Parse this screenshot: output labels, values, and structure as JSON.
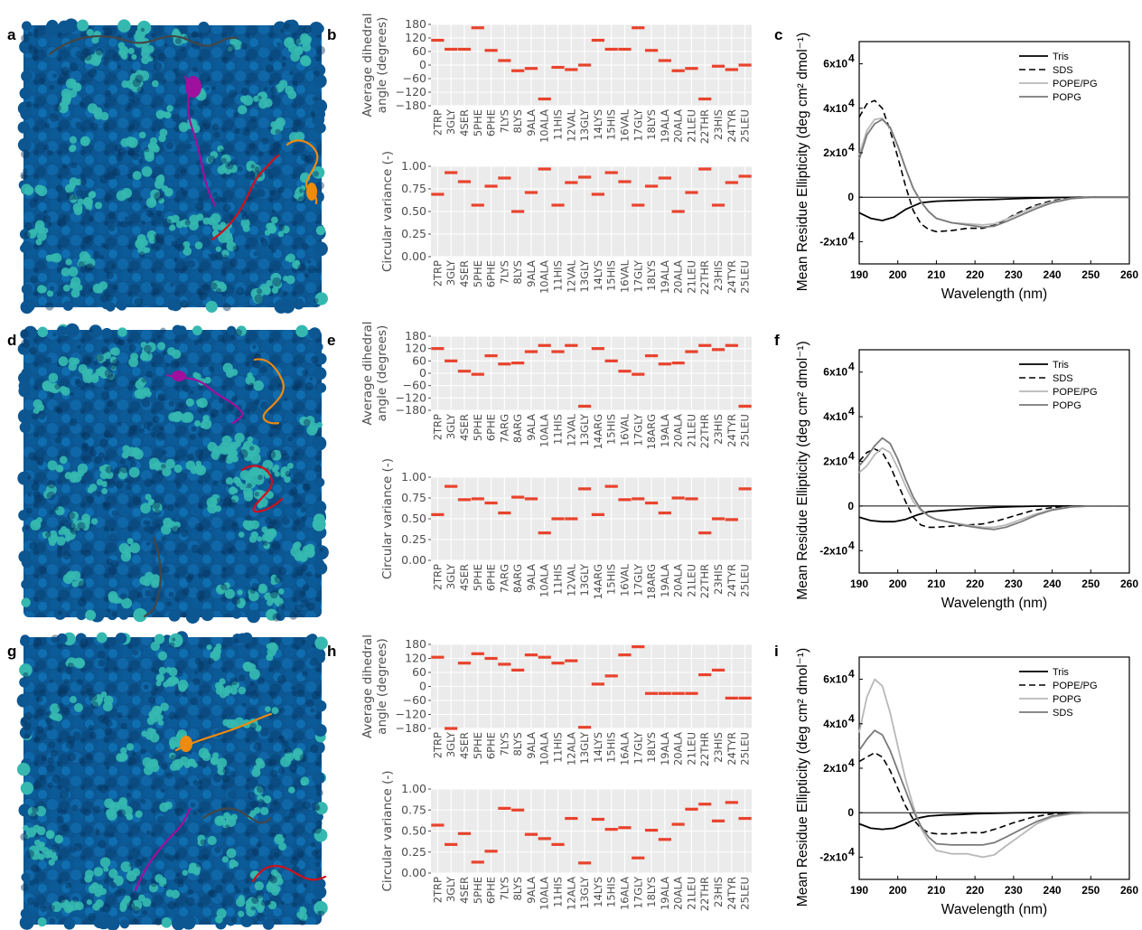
{
  "panel_letters": [
    "a",
    "b",
    "c",
    "d",
    "e",
    "f",
    "g",
    "h",
    "i"
  ],
  "colors": {
    "grid_bg": "#ebebeb",
    "bar": "#e8432d",
    "lipid_dark": "#0c5691",
    "lipid_light": "#35b8b0",
    "peptide_purple": "#a0109e",
    "peptide_orange": "#f08a0c",
    "peptide_red": "#d0101a",
    "peptide_grey": "#454545"
  },
  "chart_data": [
    {
      "panel": "b",
      "type": "errorbar-horizontal",
      "ylabel": [
        "Average dihedral",
        "angle (degrees)"
      ],
      "yticks": [
        "180",
        "120",
        "60",
        "0",
        "−60",
        "−120",
        "−180"
      ],
      "ylim": [
        -180,
        180
      ],
      "categories": [
        "2TRP",
        "3GLY",
        "4SER",
        "5PHE",
        "6PHE",
        "7LYS",
        "8LYS",
        "9ALA",
        "10ALA",
        "11HIS",
        "12VAL",
        "13GLY",
        "14LYS",
        "15HIS",
        "16VAL",
        "17GLY",
        "18LYS",
        "19ALA",
        "20ALA",
        "21LEU",
        "22THR",
        "23HIS",
        "24TYR",
        "25LEU"
      ],
      "values": [
        110,
        70,
        70,
        165,
        65,
        20,
        -25,
        -15,
        -150,
        -10,
        -20,
        0,
        110,
        70,
        70,
        165,
        65,
        20,
        -25,
        -15,
        -150,
        -5,
        -20,
        0
      ]
    },
    {
      "panel": "b",
      "type": "errorbar-horizontal",
      "ylabel": [
        "Circular variance (-)"
      ],
      "yticks": [
        "1.00",
        "0.75",
        "0.50",
        "0.25",
        "0.00"
      ],
      "ylim": [
        0,
        1
      ],
      "categories": [
        "2TRP",
        "3GLY",
        "4SER",
        "5PHE",
        "6PHE",
        "7LYS",
        "8LYS",
        "9ALA",
        "10ALA",
        "11HIS",
        "12VAL",
        "13GLY",
        "14LYS",
        "15HIS",
        "16VAL",
        "17GLY",
        "18LYS",
        "19ALA",
        "20ALA",
        "21LEU",
        "22THR",
        "23HIS",
        "24TYR",
        "25LEU"
      ],
      "values": [
        0.69,
        0.93,
        0.83,
        0.57,
        0.78,
        0.87,
        0.5,
        0.71,
        0.97,
        0.57,
        0.82,
        0.88,
        0.69,
        0.93,
        0.83,
        0.57,
        0.78,
        0.87,
        0.5,
        0.71,
        0.97,
        0.57,
        0.82,
        0.89
      ]
    },
    {
      "panel": "e",
      "type": "errorbar-horizontal",
      "ylabel": [
        "Average dihedral",
        "angle (degrees)"
      ],
      "yticks": [
        "180",
        "120",
        "60",
        "0",
        "−60",
        "−120",
        "−180"
      ],
      "ylim": [
        -180,
        180
      ],
      "categories": [
        "2TRP",
        "3GLY",
        "4SER",
        "5PHE",
        "6PHE",
        "7ARG",
        "8ARG",
        "9ALA",
        "10ALA",
        "11HIS",
        "12VAL",
        "13GLY",
        "14ARG",
        "15HIS",
        "16VAL",
        "17GLY",
        "18ARG",
        "19ALA",
        "20ALA",
        "21LEU",
        "22THR",
        "23HIS",
        "24TYR",
        "25LEU"
      ],
      "values": [
        120,
        60,
        10,
        -5,
        85,
        45,
        50,
        105,
        135,
        105,
        135,
        -160,
        120,
        60,
        10,
        -5,
        85,
        45,
        50,
        105,
        135,
        115,
        135,
        -160
      ]
    },
    {
      "panel": "e",
      "type": "errorbar-horizontal",
      "ylabel": [
        "Circular variance (-)"
      ],
      "yticks": [
        "1.00",
        "0.75",
        "0.50",
        "0.25",
        "0.00"
      ],
      "ylim": [
        0,
        1
      ],
      "categories": [
        "2TRP",
        "3GLY",
        "4SER",
        "5PHE",
        "6PHE",
        "7ARG",
        "8ARG",
        "9ALA",
        "10ALA",
        "11HIS",
        "12VAL",
        "13GLY",
        "14ARG",
        "15HIS",
        "16VAL",
        "17GLY",
        "18ARG",
        "19ALA",
        "20ALA",
        "21LEU",
        "22THR",
        "23HIS",
        "24TYR",
        "25LEU"
      ],
      "values": [
        0.55,
        0.89,
        0.73,
        0.74,
        0.69,
        0.57,
        0.76,
        0.74,
        0.33,
        0.5,
        0.5,
        0.86,
        0.55,
        0.89,
        0.73,
        0.74,
        0.69,
        0.57,
        0.75,
        0.74,
        0.33,
        0.5,
        0.49,
        0.86
      ]
    },
    {
      "panel": "h",
      "type": "errorbar-horizontal",
      "ylabel": [
        "Average dihedral",
        "angle (degrees)"
      ],
      "yticks": [
        "180",
        "120",
        "60",
        "0",
        "−60",
        "−120",
        "−180"
      ],
      "ylim": [
        -180,
        180
      ],
      "categories": [
        "2TRP",
        "3GLY",
        "4SER",
        "5PHE",
        "6PHE",
        "7LYS",
        "8LYS",
        "9ALA",
        "10ALA",
        "11HIS",
        "12ALA",
        "13GLY",
        "14LYS",
        "15HIS",
        "16ALA",
        "17GLY",
        "18LYS",
        "19ALA",
        "20ALA",
        "21LEU",
        "22THR",
        "23HIS",
        "24TYR",
        "25LEU"
      ],
      "values": [
        125,
        -180,
        100,
        140,
        120,
        95,
        70,
        135,
        125,
        100,
        110,
        -175,
        10,
        45,
        135,
        170,
        -30,
        -30,
        -30,
        -30,
        50,
        70,
        -50,
        -50
      ]
    },
    {
      "panel": "h",
      "type": "errorbar-horizontal",
      "ylabel": [
        "Circular variance (-)"
      ],
      "yticks": [
        "1.00",
        "0.75",
        "0.50",
        "0.25",
        "0.00"
      ],
      "ylim": [
        0,
        1
      ],
      "categories": [
        "2TRP",
        "3GLY",
        "4SER",
        "5PHE",
        "6PHE",
        "7LYS",
        "8LYS",
        "9ALA",
        "10ALA",
        "11HIS",
        "12ALA",
        "13GLY",
        "14LYS",
        "15HIS",
        "16ALA",
        "17GLY",
        "18LYS",
        "19ALA",
        "20ALA",
        "21LEU",
        "22THR",
        "23HIS",
        "24TYR",
        "25LEU"
      ],
      "values": [
        0.57,
        0.34,
        0.47,
        0.13,
        0.26,
        0.77,
        0.75,
        0.46,
        0.41,
        0.34,
        0.65,
        0.12,
        0.64,
        0.52,
        0.54,
        0.18,
        0.51,
        0.4,
        0.58,
        0.76,
        0.82,
        0.62,
        0.84,
        0.65
      ]
    },
    {
      "panel": "c",
      "type": "line",
      "xlabel": "Wavelength (nm)",
      "ylabel": "Mean Residue Ellipticity (deg cm² dmol⁻¹)",
      "xlim": [
        190,
        260
      ],
      "ylim": [
        -30000,
        70000
      ],
      "xticks": [
        "190",
        "200",
        "210",
        "220",
        "230",
        "240",
        "250",
        "260"
      ],
      "ytick_values": [
        -20000,
        0,
        20000,
        40000,
        60000
      ],
      "ytick_labels": [
        "-2x10",
        "0",
        "2x10",
        "4x10",
        "6x10"
      ],
      "ytick_exp": "4",
      "series": [
        {
          "name": "Tris",
          "style": "black-solid",
          "x": [
            190,
            193,
            196,
            199,
            202,
            206,
            210,
            215,
            220,
            225,
            230,
            235,
            240,
            245,
            250,
            260
          ],
          "y": [
            -7000,
            -9500,
            -10500,
            -9000,
            -5500,
            -2500,
            -1800,
            -1500,
            -1200,
            -1000,
            -700,
            -400,
            -200,
            -100,
            0,
            0
          ]
        },
        {
          "name": "SDS",
          "style": "black-dashed",
          "x": [
            190,
            192,
            194,
            196,
            198,
            200,
            202,
            204,
            206,
            208,
            210,
            214,
            218,
            222,
            226,
            230,
            235,
            240,
            245,
            250,
            260
          ],
          "y": [
            36000,
            42000,
            43500,
            40000,
            30000,
            18000,
            5000,
            -6000,
            -12000,
            -14500,
            -15500,
            -15000,
            -14000,
            -14000,
            -12000,
            -8000,
            -4000,
            -1500,
            -400,
            0,
            0
          ]
        },
        {
          "name": "POPE/PG",
          "style": "lightgrey-solid",
          "x": [
            190,
            192,
            194,
            196,
            198,
            200,
            202,
            204,
            206,
            208,
            210,
            214,
            218,
            222,
            225,
            228,
            232,
            236,
            240,
            245,
            250,
            260
          ],
          "y": [
            19000,
            30000,
            35000,
            35500,
            31000,
            23000,
            13000,
            4000,
            -2000,
            -6500,
            -9500,
            -11500,
            -12000,
            -12500,
            -12000,
            -10000,
            -7000,
            -4000,
            -2000,
            -500,
            0,
            0
          ]
        },
        {
          "name": "POPG",
          "style": "grey-solid",
          "x": [
            190,
            192,
            194,
            196,
            198,
            200,
            202,
            204,
            206,
            208,
            210,
            214,
            218,
            222,
            225,
            228,
            232,
            236,
            240,
            245,
            250,
            260
          ],
          "y": [
            17000,
            28000,
            33000,
            35000,
            31500,
            23000,
            13000,
            4000,
            -2000,
            -6500,
            -9500,
            -11500,
            -12500,
            -13500,
            -13000,
            -11000,
            -8000,
            -5000,
            -2500,
            -600,
            0,
            0
          ]
        }
      ]
    },
    {
      "panel": "f",
      "type": "line",
      "xlabel": "Wavelength (nm)",
      "ylabel": "Mean Residue Ellipticity (deg cm² dmol⁻¹)",
      "xlim": [
        190,
        260
      ],
      "ylim": [
        -30000,
        70000
      ],
      "xticks": [
        "190",
        "200",
        "210",
        "220",
        "230",
        "240",
        "250",
        "260"
      ],
      "ytick_values": [
        -20000,
        0,
        20000,
        40000,
        60000
      ],
      "ytick_labels": [
        "-2x10",
        "0",
        "2x10",
        "4x10",
        "6x10"
      ],
      "ytick_exp": "4",
      "series": [
        {
          "name": "Tris",
          "style": "black-solid",
          "x": [
            190,
            193,
            196,
            199,
            202,
            205,
            208,
            212,
            216,
            220,
            225,
            230,
            235,
            240,
            245,
            250,
            260
          ],
          "y": [
            -5000,
            -6500,
            -7000,
            -7000,
            -6000,
            -4000,
            -2500,
            -2000,
            -1500,
            -1000,
            -600,
            -300,
            -100,
            0,
            0,
            0,
            0
          ]
        },
        {
          "name": "SDS",
          "style": "black-dashed",
          "x": [
            190,
            192,
            194,
            196,
            198,
            200,
            202,
            204,
            206,
            208,
            210,
            214,
            218,
            222,
            226,
            230,
            235,
            240,
            245,
            250,
            260
          ],
          "y": [
            20000,
            24000,
            25500,
            24000,
            18000,
            10000,
            2000,
            -5000,
            -8500,
            -9500,
            -9500,
            -9000,
            -8500,
            -8000,
            -6500,
            -4500,
            -2000,
            -700,
            0,
            0,
            0
          ]
        },
        {
          "name": "POPE/PG",
          "style": "lightgrey-solid",
          "x": [
            190,
            192,
            194,
            196,
            198,
            200,
            202,
            204,
            206,
            208,
            210,
            214,
            218,
            222,
            225,
            228,
            232,
            236,
            240,
            245,
            250,
            260
          ],
          "y": [
            15000,
            18000,
            23000,
            26000,
            24000,
            17000,
            9000,
            2000,
            -2000,
            -4500,
            -6000,
            -7500,
            -8500,
            -9500,
            -9500,
            -8500,
            -6000,
            -3500,
            -1500,
            -300,
            0,
            0
          ]
        },
        {
          "name": "POPG",
          "style": "grey-solid",
          "x": [
            190,
            192,
            194,
            196,
            198,
            200,
            202,
            204,
            206,
            208,
            210,
            214,
            218,
            222,
            225,
            228,
            232,
            236,
            240,
            245,
            250,
            260
          ],
          "y": [
            18000,
            22000,
            27000,
            30500,
            28000,
            21000,
            12000,
            4000,
            -1500,
            -4500,
            -6000,
            -7500,
            -9000,
            -10000,
            -10500,
            -9500,
            -7000,
            -4000,
            -1800,
            -400,
            0,
            0
          ]
        }
      ]
    },
    {
      "panel": "i",
      "type": "line",
      "xlabel": "Wavelength (nm)",
      "ylabel": "Mean Residue Ellipticity (deg cm² dmol⁻¹)",
      "xlim": [
        190,
        260
      ],
      "ylim": [
        -30000,
        70000
      ],
      "xticks": [
        "190",
        "200",
        "210",
        "220",
        "230",
        "240",
        "250",
        "260"
      ],
      "ytick_values": [
        -20000,
        0,
        20000,
        40000,
        60000
      ],
      "ytick_labels": [
        "-2x10",
        "0",
        "2x10",
        "4x10",
        "6x10"
      ],
      "ytick_exp": "4",
      "series": [
        {
          "name": "Tris",
          "style": "black-solid",
          "x": [
            190,
            193,
            196,
            199,
            202,
            205,
            208,
            212,
            216,
            220,
            225,
            230,
            235,
            240,
            245,
            250,
            260
          ],
          "y": [
            -5000,
            -7000,
            -7500,
            -7000,
            -5000,
            -2500,
            -1500,
            -1000,
            -800,
            -500,
            -300,
            -100,
            0,
            0,
            0,
            0,
            0
          ]
        },
        {
          "name": "POPE/PG",
          "style": "black-dashed",
          "x": [
            190,
            192,
            194,
            196,
            198,
            200,
            202,
            204,
            206,
            208,
            210,
            214,
            218,
            222,
            226,
            230,
            235,
            240,
            245,
            250,
            260
          ],
          "y": [
            23000,
            25000,
            27000,
            25000,
            19000,
            11000,
            3000,
            -3000,
            -7000,
            -9000,
            -9500,
            -9500,
            -9000,
            -9000,
            -7000,
            -4500,
            -2000,
            -500,
            0,
            0,
            0
          ]
        },
        {
          "name": "POPG",
          "style": "lightgrey-solid",
          "x": [
            190,
            192,
            194,
            196,
            198,
            200,
            202,
            204,
            206,
            208,
            210,
            214,
            218,
            222,
            225,
            228,
            232,
            236,
            240,
            245,
            250,
            260
          ],
          "y": [
            36000,
            52000,
            60000,
            57000,
            45000,
            30000,
            15000,
            3000,
            -7000,
            -13000,
            -17000,
            -18500,
            -18500,
            -20000,
            -19000,
            -15000,
            -10000,
            -5000,
            -2000,
            -500,
            0,
            0
          ]
        },
        {
          "name": "SDS",
          "style": "grey-solid",
          "x": [
            190,
            192,
            194,
            196,
            198,
            200,
            202,
            204,
            206,
            208,
            210,
            214,
            218,
            222,
            225,
            228,
            232,
            236,
            240,
            245,
            250,
            260
          ],
          "y": [
            28000,
            33000,
            37000,
            35000,
            28000,
            19000,
            10000,
            1000,
            -6000,
            -11000,
            -14000,
            -14500,
            -14500,
            -14500,
            -13500,
            -11000,
            -7500,
            -4000,
            -1500,
            -300,
            0,
            0
          ]
        }
      ]
    }
  ]
}
